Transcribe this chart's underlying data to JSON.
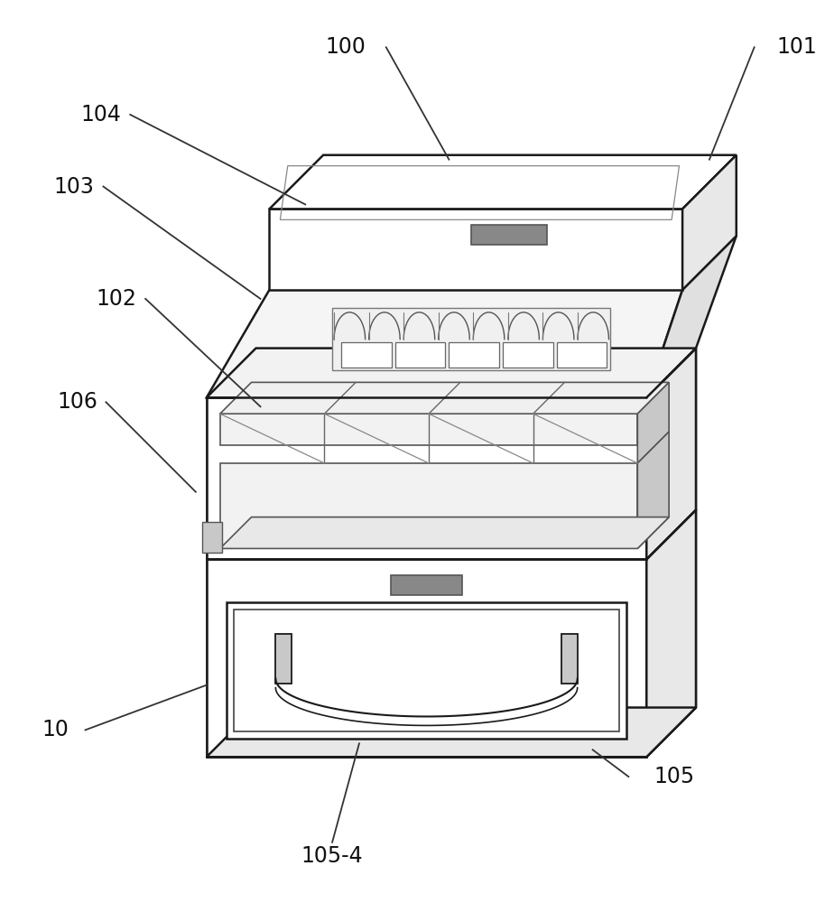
{
  "line_color": "#1a1a1a",
  "lw_main": 1.8,
  "lw_thin": 1.2,
  "lw_annot": 1.3,
  "label_fontsize": 17,
  "label_color": "#111111",
  "white": "#ffffff",
  "light_gray": "#e8e8e8",
  "mid_gray": "#c8c8c8",
  "dark_gray": "#888888",
  "very_light": "#f2f2f2"
}
